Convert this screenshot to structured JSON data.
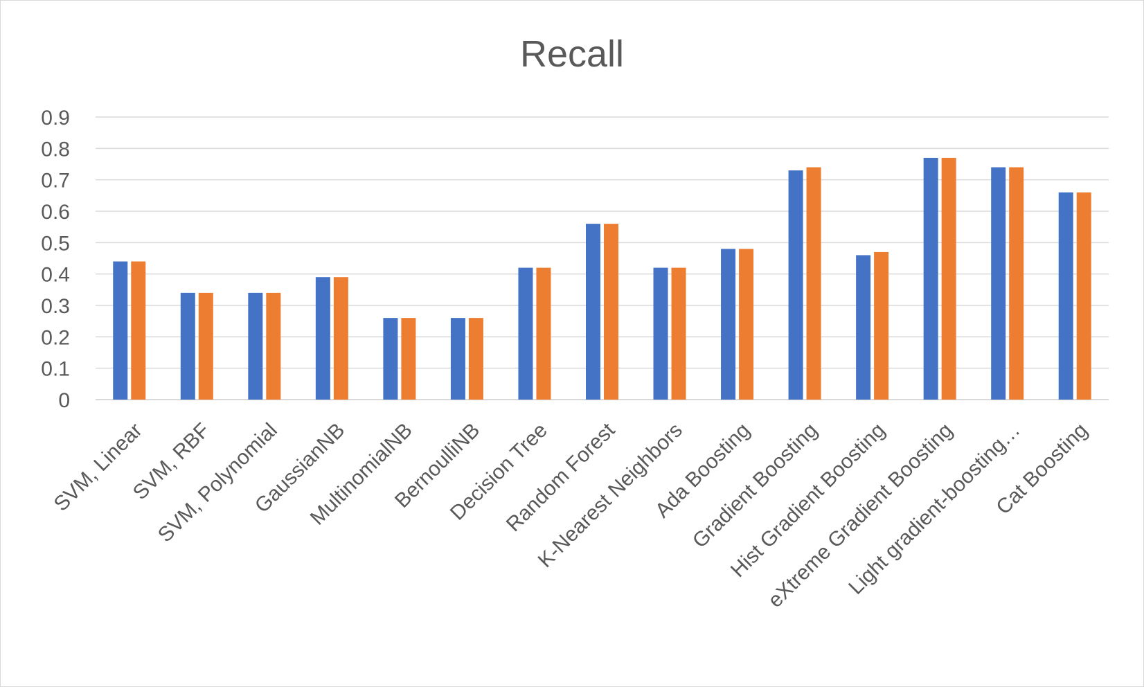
{
  "chart_data": {
    "type": "bar",
    "title": "Recall",
    "xlabel": "",
    "ylabel": "",
    "ylim": [
      0,
      0.9
    ],
    "y_ticks": [
      "0",
      "0.1",
      "0.2",
      "0.3",
      "0.4",
      "0.5",
      "0.6",
      "0.7",
      "0.8",
      "0.9"
    ],
    "grid": true,
    "legend": "none",
    "categories": [
      "SVM, Linear",
      "SVM, RBF",
      "SVM, Polynomial",
      "GaussianNB",
      "MultinomialNB",
      "BernoulliNB",
      "Decision Tree",
      "Random Forest",
      "K-Nearest Neighbors",
      "Ada Boosting",
      "Gradient Boosting",
      "Hist Gradient Boosting",
      "eXtreme Gradient Boosting",
      "Light gradient-boosting…",
      "Cat Boosting"
    ],
    "series": [
      {
        "color": "#4472c4",
        "values": [
          0.44,
          0.34,
          0.34,
          0.39,
          0.26,
          0.26,
          0.42,
          0.56,
          0.42,
          0.48,
          0.73,
          0.46,
          0.77,
          0.74,
          0.66
        ]
      },
      {
        "color": "#ed7d31",
        "values": [
          0.44,
          0.34,
          0.34,
          0.39,
          0.26,
          0.26,
          0.42,
          0.56,
          0.42,
          0.48,
          0.74,
          0.47,
          0.77,
          0.74,
          0.66
        ]
      }
    ],
    "gridline_color": "#d9d9d9",
    "text_color": "#595959"
  }
}
